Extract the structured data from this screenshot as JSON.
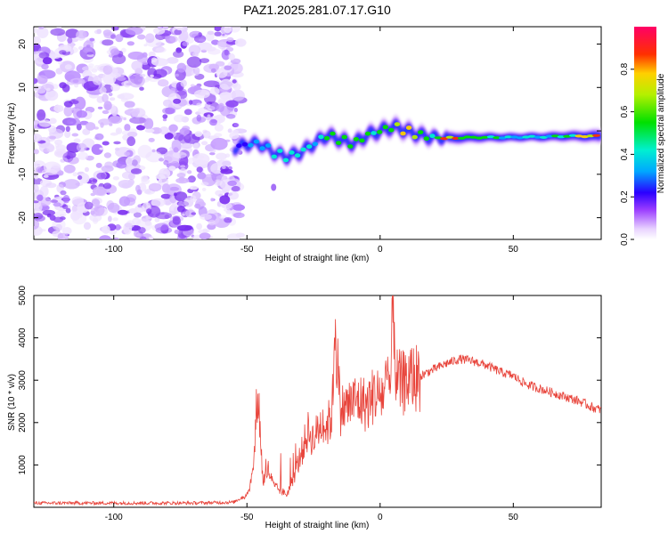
{
  "title": "PAZ1.2025.281.07.17.G10",
  "chart_data": [
    {
      "type": "heatmap",
      "title": "PAZ1.2025.281.07.17.G10",
      "xlabel": "Height of straight line (km)",
      "ylabel": "Frequency (Hz)",
      "xlim": [
        -130,
        83
      ],
      "ylim": [
        -25,
        24
      ],
      "xticks": [
        -100,
        -50,
        0,
        50
      ],
      "yticks": [
        -20,
        -10,
        0,
        10,
        20
      ],
      "colorbar": {
        "label": "Normalized spectral amplitude",
        "range": [
          0,
          1
        ],
        "ticks": [
          0.0,
          0.2,
          0.4,
          0.6,
          0.8
        ]
      },
      "noise_region": {
        "x_from": -130,
        "x_to": -55
      },
      "signal_ridge": {
        "x": [
          -55,
          -50,
          -45,
          -40,
          -35,
          -30,
          -25,
          -20,
          -15,
          -10,
          -5,
          0,
          5,
          10,
          15,
          20,
          25,
          30,
          35,
          40,
          45,
          50,
          55,
          60,
          65,
          70,
          75,
          83
        ],
        "frequency": [
          -4,
          -3,
          -3,
          -5,
          -6,
          -5,
          -3,
          -1,
          -2,
          -3,
          -1,
          0,
          1,
          0,
          -1,
          -1.5,
          -1.6,
          -1.6,
          -1.5,
          -1.5,
          -1.5,
          -1.5,
          -1.4,
          -1.4,
          -1.3,
          -1.2,
          -1.2,
          -1.2
        ],
        "amplitude": [
          0.25,
          0.35,
          0.35,
          0.4,
          0.45,
          0.45,
          0.4,
          0.55,
          0.6,
          0.55,
          0.6,
          0.55,
          0.65,
          0.7,
          0.6,
          0.55,
          0.8,
          0.75,
          0.6,
          0.5,
          0.45,
          0.4,
          0.4,
          0.45,
          0.5,
          0.6,
          0.7,
          0.95
        ]
      }
    },
    {
      "type": "line",
      "xlabel": "Height of straight line (km)",
      "ylabel": "SNR (10 * v/v)",
      "xlim": [
        -130,
        83
      ],
      "ylim": [
        0,
        5000
      ],
      "xticks": [
        -100,
        -50,
        0,
        50
      ],
      "yticks": [
        1000,
        2000,
        3000,
        4000,
        5000
      ],
      "color": "#e8453c",
      "series": [
        {
          "name": "SNR",
          "x": [
            -130,
            -110,
            -90,
            -70,
            -55,
            -50,
            -48,
            -47,
            -46,
            -45,
            -44,
            -42,
            -40,
            -35,
            -32,
            -30,
            -27,
            -25,
            -22,
            -20,
            -18,
            -17,
            -15,
            -12,
            -10,
            -7,
            -5,
            -2,
            0,
            2,
            4,
            5,
            6,
            8,
            10,
            15,
            20,
            25,
            30,
            35,
            40,
            45,
            50,
            55,
            60,
            65,
            70,
            75,
            80,
            83
          ],
          "y": [
            100,
            100,
            100,
            100,
            120,
            300,
            700,
            1500,
            2900,
            1800,
            600,
            900,
            500,
            300,
            800,
            1200,
            1800,
            1600,
            2000,
            1900,
            2200,
            4500,
            2300,
            2400,
            2500,
            2500,
            2400,
            2700,
            2600,
            2800,
            2900,
            5000,
            3000,
            2900,
            3000,
            3100,
            3250,
            3400,
            3500,
            3450,
            3350,
            3200,
            3100,
            2900,
            2800,
            2700,
            2600,
            2500,
            2350,
            2300
          ]
        }
      ]
    }
  ]
}
